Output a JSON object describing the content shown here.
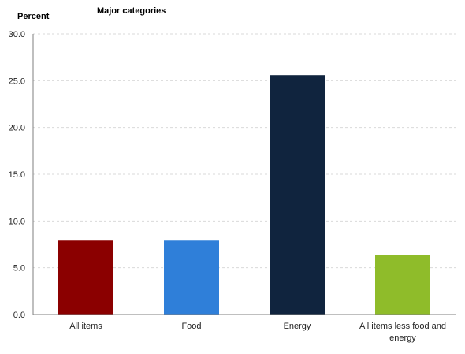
{
  "chart_data": {
    "type": "bar",
    "title": "Major categories",
    "ylabel": "Percent",
    "xlabel": "",
    "ylim": [
      0,
      30
    ],
    "yticks": [
      "0.0",
      "5.0",
      "10.0",
      "15.0",
      "20.0",
      "25.0",
      "30.0"
    ],
    "ytick_values": [
      0,
      5,
      10,
      15,
      20,
      25,
      30
    ],
    "categories": [
      "All items",
      "Food",
      "Energy",
      "All items less food and energy"
    ],
    "category_lines": [
      [
        "All items"
      ],
      [
        "Food"
      ],
      [
        "Energy"
      ],
      [
        "All items less food and",
        "energy"
      ]
    ],
    "values": [
      7.9,
      7.9,
      25.6,
      6.4
    ],
    "colors": [
      "#8b0000",
      "#2f7fd9",
      "#10243e",
      "#8fbc2a"
    ],
    "grid": true,
    "legend": "none"
  }
}
